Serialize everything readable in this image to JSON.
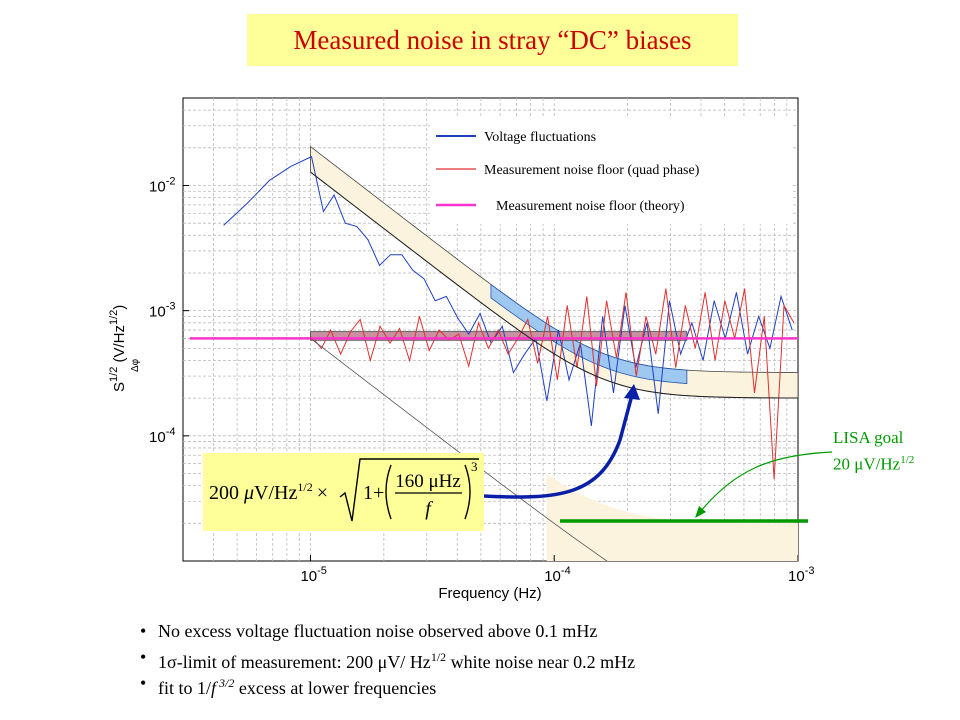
{
  "title": "Measured noise in stray “DC” biases",
  "chart_data": {
    "type": "line",
    "x_scale": "log",
    "y_scale": "log",
    "xlim": [
      3e-06,
      0.001
    ],
    "ylim": [
      1e-05,
      0.05
    ],
    "xlabel": "Frequency (Hz)",
    "ylabel_main": "S",
    "ylabel_sup": "1/2",
    "ylabel_sub": "Δφ",
    "ylabel_unit": " (V/Hz",
    "ylabel_unit_sup": "1/2",
    "ylabel_unit_end": ")",
    "x_ticks": [
      {
        "value": 1e-05,
        "base": "10",
        "exp": "-5"
      },
      {
        "value": 0.0001,
        "base": "10",
        "exp": "-4"
      },
      {
        "value": 0.001,
        "base": "10",
        "exp": "-3"
      }
    ],
    "y_ticks": [
      {
        "value": 0.01,
        "base": "10",
        "exp": "-2"
      },
      {
        "value": 0.001,
        "base": "10",
        "exp": "-3"
      },
      {
        "value": 0.0001,
        "base": "10",
        "exp": "-4"
      }
    ],
    "grid": true,
    "legend_position": "top-right",
    "series": [
      {
        "name": "Voltage fluctuations",
        "color": "#1f3fbf",
        "x": [
          4.4e-06,
          5.5e-06,
          6.8e-06,
          8.3e-06,
          1.01e-05,
          1.13e-05,
          1.25e-05,
          1.39e-05,
          1.55e-05,
          1.72e-05,
          1.92e-05,
          2.13e-05,
          2.37e-05,
          2.63e-05,
          2.92e-05,
          3.25e-05,
          3.61e-05,
          4.01e-05,
          4.46e-05,
          4.96e-05,
          5.51e-05,
          6.12e-05,
          6.8e-05,
          7.56e-05,
          8.4e-05,
          9.33e-05,
          0.000104,
          0.000115,
          0.000128,
          0.000142,
          0.000158,
          0.000175,
          0.000195,
          0.000216,
          0.00024,
          0.000267,
          0.000297,
          0.00033,
          0.000367,
          0.000408,
          0.000453,
          0.000503,
          0.000559,
          0.000621,
          0.00069,
          0.000767,
          0.000852,
          0.000947
        ],
        "y": [
          0.0048,
          0.0072,
          0.011,
          0.0142,
          0.017,
          0.0062,
          0.0084,
          0.005,
          0.0047,
          0.0037,
          0.0023,
          0.0028,
          0.0028,
          0.0021,
          0.0018,
          0.0012,
          0.0013,
          0.00088,
          0.00065,
          0.00095,
          0.00055,
          0.00075,
          0.00032,
          0.00045,
          0.0006,
          0.00019,
          0.0007,
          0.00028,
          0.00055,
          0.00012,
          0.0009,
          0.00022,
          0.0011,
          0.00035,
          0.0008,
          0.00015,
          0.0012,
          0.00045,
          0.0008,
          0.0004,
          0.0012,
          0.0006,
          0.0014,
          0.00045,
          0.0009,
          0.0005,
          0.0013,
          0.0007
        ]
      },
      {
        "name": "Measurement noise floor (quad phase)",
        "color": "#e03030",
        "x": [
          1.01e-05,
          1.11e-05,
          1.21e-05,
          1.33e-05,
          1.46e-05,
          1.6e-05,
          1.76e-05,
          1.93e-05,
          2.12e-05,
          2.32e-05,
          2.55e-05,
          2.8e-05,
          3.07e-05,
          3.37e-05,
          3.7e-05,
          4.06e-05,
          4.46e-05,
          4.89e-05,
          5.37e-05,
          5.89e-05,
          6.47e-05,
          7.1e-05,
          7.79e-05,
          8.55e-05,
          9.39e-05,
          0.000103,
          0.000113,
          0.000124,
          0.000136,
          0.000149,
          0.000164,
          0.00018,
          0.000197,
          0.000217,
          0.000238,
          0.000261,
          0.000287,
          0.000315,
          0.000345,
          0.000379,
          0.000416,
          0.000457,
          0.000501,
          0.00055,
          0.000604,
          0.000663,
          0.000727,
          0.000798,
          0.000876,
          0.000962
        ],
        "y": [
          0.00062,
          0.0005,
          0.0007,
          0.00045,
          0.00068,
          0.00085,
          0.0004,
          0.00075,
          0.00055,
          0.00072,
          0.0004,
          0.0009,
          0.00048,
          0.0007,
          0.00058,
          0.00065,
          0.00036,
          0.0008,
          0.0005,
          0.0007,
          0.00045,
          0.0006,
          0.00085,
          0.00038,
          0.0009,
          0.00028,
          0.0011,
          0.00035,
          0.0013,
          0.00025,
          0.0012,
          0.00042,
          0.0014,
          0.0003,
          0.0009,
          0.00045,
          0.0015,
          0.00035,
          0.0011,
          0.0005,
          0.0014,
          0.0004,
          0.0012,
          0.0006,
          0.0015,
          0.00022,
          0.0009,
          4.5e-05,
          0.0011,
          0.0008
        ]
      },
      {
        "name": "Measurement noise floor (theory)",
        "color": "#ff33cc",
        "x": [
          3.2e-06,
          0.001
        ],
        "y": [
          0.0006,
          0.0006
        ]
      }
    ],
    "fit": {
      "color": "#333333",
      "white_level": 0.0002,
      "corner_freq": 0.00016,
      "exponent": 3,
      "x_start": 1e-05,
      "x_end": 0.001
    },
    "lisa_goal": {
      "label_line1": "LISA goal",
      "label_line2_pre": "20 ",
      "label_line2_mu": "μ",
      "label_line2_unit": "V/Hz",
      "label_line2_sup": "1/2",
      "value": 2e-05,
      "x_range": [
        0.00011,
        0.001
      ],
      "color": "#009900"
    }
  },
  "formula": {
    "prefix": "200 ",
    "mu": "μ",
    "unit": "V/Hz",
    "unit_sup": "1/2",
    "times": "×",
    "one_plus": "1+",
    "numerator": "160 μHz",
    "denominator": "f",
    "power": "3"
  },
  "bullets": [
    {
      "parts": [
        {
          "t": "No excess voltage fluctuation noise observed above 0.1 mHz"
        }
      ]
    },
    {
      "parts": [
        {
          "t": "1"
        },
        {
          "t": "σ",
          "greek": true
        },
        {
          "t": "-limit of measurement: 200 "
        },
        {
          "t": "μ",
          "greek": true
        },
        {
          "t": "V/ Hz"
        },
        {
          "t": "1/2",
          "sup": true
        },
        {
          "t": " white noise near 0.2 mHz"
        }
      ]
    },
    {
      "parts": [
        {
          "t": "fit to 1/"
        },
        {
          "t": "f",
          "italic": true
        },
        {
          "t": " 3/2",
          "sup": true,
          "italic": true
        },
        {
          "t": " excess at lower frequencies"
        }
      ]
    }
  ]
}
